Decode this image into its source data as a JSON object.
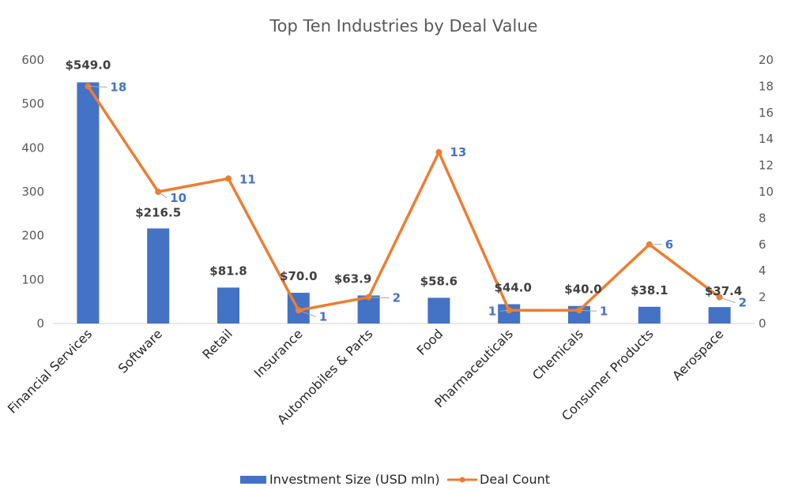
{
  "chart_data": {
    "type": "bar",
    "title": "Top Ten Industries by Deal Value",
    "categories": [
      "Financial Services",
      "Software",
      "Retail",
      "Insurance",
      "Automobiles & Parts",
      "Food",
      "Pharmaceuticals",
      "Chemicals",
      "Consumer Products",
      "Aerospace"
    ],
    "series": [
      {
        "name": "Investment Size (USD mln)",
        "type": "bar",
        "axis": "left",
        "color": "#4472C4",
        "values": [
          549.0,
          216.5,
          81.8,
          70.0,
          63.9,
          58.6,
          44.0,
          40.0,
          38.1,
          37.4
        ],
        "labels": [
          "$549.0",
          "$216.5",
          "$81.8",
          "$70.0",
          "$63.9",
          "$58.6",
          "$44.0",
          "$40.0",
          "$38.1",
          "$37.4"
        ]
      },
      {
        "name": "Deal Count",
        "type": "line",
        "axis": "right",
        "color": "#ED7D31",
        "values": [
          18,
          10,
          11,
          1,
          2,
          13,
          1,
          1,
          6,
          2
        ],
        "labels": [
          "18",
          "10",
          "11",
          "1",
          "2",
          "13",
          "1",
          "1",
          "6",
          "2"
        ]
      }
    ],
    "y_left": {
      "ylim": [
        0,
        600
      ],
      "ticks": [
        "0",
        "100",
        "200",
        "300",
        "400",
        "500",
        "600"
      ]
    },
    "y_right": {
      "ylim": [
        0,
        20
      ],
      "ticks": [
        "0",
        "2",
        "4",
        "6",
        "8",
        "10",
        "12",
        "14",
        "16",
        "18",
        "20"
      ]
    },
    "xlabel": "",
    "ylabel": "",
    "grid": false,
    "legend": "bottom"
  }
}
